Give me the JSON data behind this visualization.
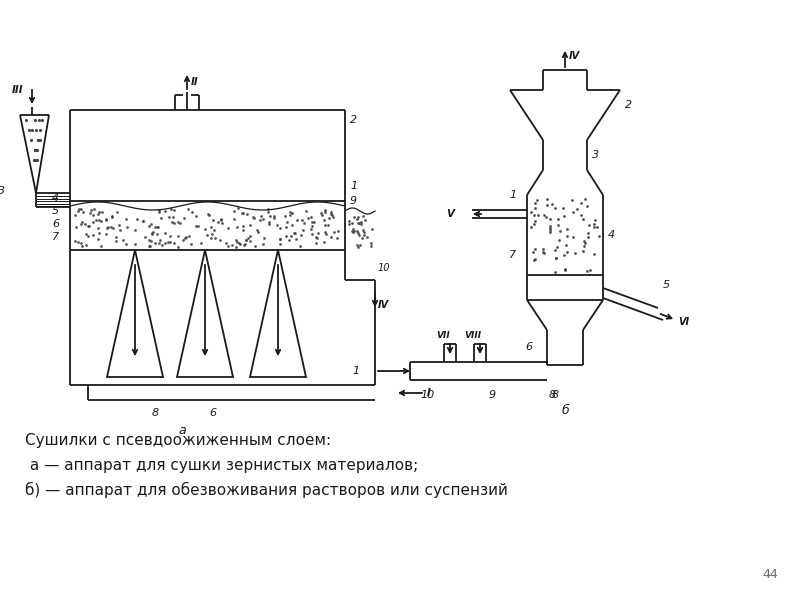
{
  "line_color": "#1a1a1a",
  "caption_line1": "Сушилки с псевдоожиженным слоем:",
  "caption_line2": " а — аппарат для сушки зернистых материалов;",
  "caption_line3": "б) — аппарат для обезвоживания растворов или суспензий",
  "page_number": "44"
}
